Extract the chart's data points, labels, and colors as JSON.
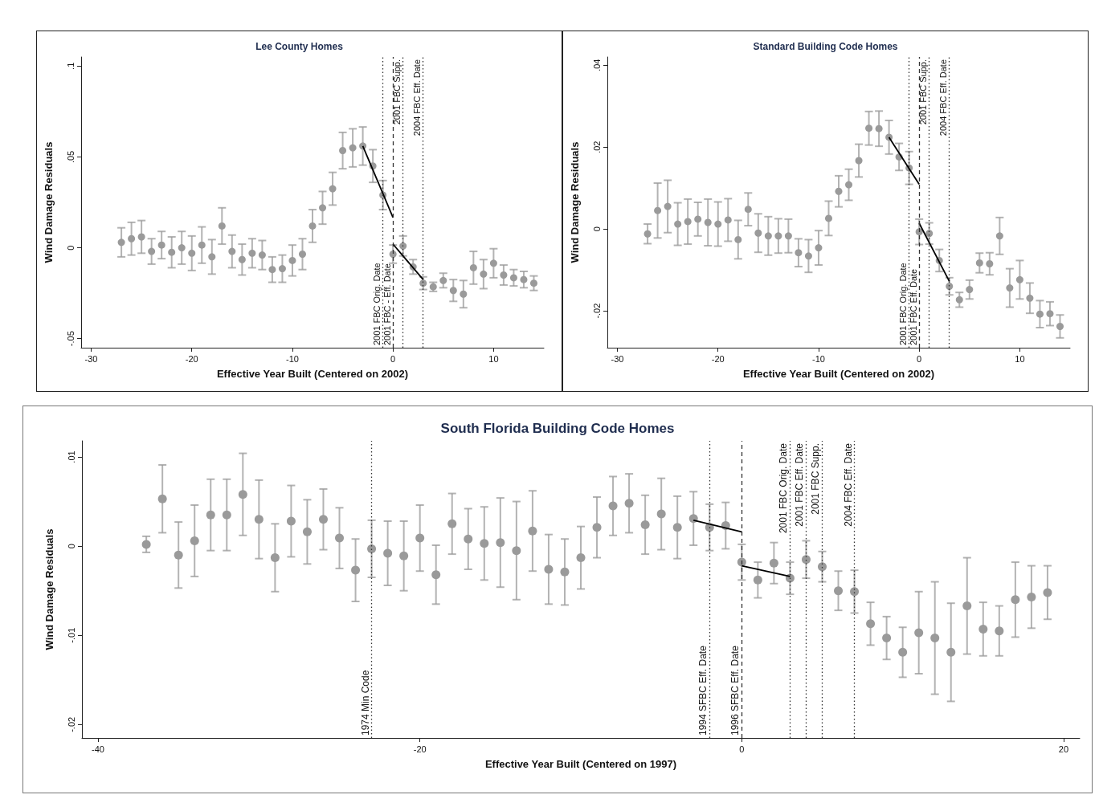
{
  "chart_data": [
    {
      "type": "scatter",
      "title": "Lee County Homes",
      "xlabel": "Effective Year Built (Centered on 2002)",
      "ylabel": "Wind Damage Residuals",
      "grid": false,
      "xlim": [
        -31,
        15
      ],
      "xticks": [
        -30,
        -20,
        -10,
        0,
        10
      ],
      "ylim": [
        -0.055,
        0.105
      ],
      "yticks": [
        {
          "value": -0.05,
          "label": "-.05"
        },
        {
          "value": 0,
          "label": "0"
        },
        {
          "value": 0.05,
          "label": ".05"
        },
        {
          "value": 0.1,
          "label": ".1"
        }
      ],
      "series": [
        {
          "type": "scatter",
          "marker": "circle",
          "color": "#9a9a9a",
          "x": [
            -27,
            -26,
            -25,
            -24,
            -23,
            -22,
            -21,
            -20,
            -19,
            -18,
            -17,
            -16,
            -15,
            -14,
            -13,
            -12,
            -11,
            -10,
            -9,
            -8,
            -7,
            -6,
            -5,
            -4,
            -3,
            -2,
            -1,
            0,
            1,
            2,
            3,
            4,
            5,
            6,
            7,
            8,
            9,
            10,
            11,
            12,
            13,
            14
          ],
          "values": [
            0.003,
            0.005,
            0.006,
            -0.002,
            0.0015,
            -0.0025,
            0,
            -0.003,
            0.0015,
            -0.005,
            0.012,
            -0.002,
            -0.0065,
            -0.003,
            -0.004,
            -0.012,
            -0.0115,
            -0.007,
            -0.0035,
            0.012,
            0.022,
            0.0325,
            0.0535,
            0.055,
            0.056,
            0.045,
            0.029,
            -0.0035,
            0.001,
            -0.0105,
            -0.0195,
            -0.0215,
            -0.018,
            -0.0235,
            -0.0255,
            -0.011,
            -0.0145,
            -0.0085,
            -0.015,
            -0.0165,
            -0.0175,
            -0.0195
          ],
          "errors": [
            0.008,
            0.009,
            0.009,
            0.007,
            0.0075,
            0.0085,
            0.009,
            0.0095,
            0.01,
            0.0095,
            0.01,
            0.009,
            0.0085,
            0.008,
            0.008,
            0.007,
            0.0075,
            0.0085,
            0.0085,
            0.009,
            0.009,
            0.009,
            0.01,
            0.0105,
            0.0105,
            0.009,
            0.008,
            0.005,
            0.0055,
            0.004,
            0.0035,
            0.0025,
            0.004,
            0.006,
            0.0075,
            0.009,
            0.008,
            0.008,
            0.0055,
            0.0045,
            0.0045,
            0.004
          ]
        },
        {
          "type": "line",
          "marker": "none",
          "color": "#000000",
          "x": [
            -3,
            0
          ],
          "values": [
            0.056,
            0.0167
          ]
        },
        {
          "type": "line",
          "marker": "none",
          "color": "#000000",
          "x": [
            0,
            3
          ],
          "values": [
            0.002,
            -0.0175
          ]
        }
      ],
      "ref_lines": [
        {
          "axis": "x",
          "value": -1,
          "label": "2001 FBC Orig. Date",
          "line_style": "dotted"
        },
        {
          "axis": "x",
          "value": 0,
          "label": "2001 FBC - Eff. Date",
          "line_style": "dashed"
        },
        {
          "axis": "x",
          "value": 1,
          "label": "2001 FBC Supp.",
          "line_style": "dotted"
        },
        {
          "axis": "x",
          "value": 3,
          "label": "2004 FBC Eff. Date",
          "line_style": "dotted"
        }
      ]
    },
    {
      "type": "scatter",
      "title": "Standard Building Code Homes",
      "xlabel": "Effective Year Built (Centered on 2002)",
      "ylabel": "Wind Damage Residuals",
      "grid": false,
      "xlim": [
        -31,
        15
      ],
      "xticks": [
        -30,
        -20,
        -10,
        0,
        10
      ],
      "ylim": [
        -0.029,
        0.042
      ],
      "yticks": [
        {
          "value": -0.02,
          "label": "-.02"
        },
        {
          "value": 0,
          "label": "0"
        },
        {
          "value": 0.02,
          "label": ".02"
        },
        {
          "value": 0.04,
          "label": ".04"
        }
      ],
      "series": [
        {
          "type": "scatter",
          "marker": "circle",
          "color": "#9a9a9a",
          "x": [
            -27,
            -26,
            -25,
            -24,
            -23,
            -22,
            -21,
            -20,
            -19,
            -18,
            -17,
            -16,
            -15,
            -14,
            -13,
            -12,
            -11,
            -10,
            -9,
            -8,
            -7,
            -6,
            -5,
            -4,
            -3,
            -2,
            -1,
            0,
            1,
            2,
            3,
            4,
            5,
            6,
            7,
            8,
            9,
            10,
            11,
            12,
            13,
            14
          ],
          "values": [
            -0.0012,
            0.0045,
            0.0055,
            0.0012,
            0.0018,
            0.0024,
            0.0016,
            0.0012,
            0.0022,
            -0.0026,
            0.0048,
            -0.001,
            -0.0017,
            -0.0017,
            -0.0017,
            -0.0058,
            -0.0066,
            -0.0046,
            0.0026,
            0.0092,
            0.0108,
            0.0167,
            0.0246,
            0.0245,
            0.0224,
            0.0176,
            0.0149,
            -0.0007,
            -0.0011,
            -0.0077,
            -0.014,
            -0.0173,
            -0.0148,
            -0.0083,
            -0.0085,
            -0.0017,
            -0.0144,
            -0.0124,
            -0.0169,
            -0.0208,
            -0.0207,
            -0.0238
          ],
          "errors": [
            0.0024,
            0.0067,
            0.0064,
            0.0052,
            0.0055,
            0.0041,
            0.0057,
            0.0054,
            0.0052,
            0.0047,
            0.004,
            0.0047,
            0.0047,
            0.0042,
            0.0041,
            0.0034,
            0.004,
            0.0042,
            0.0042,
            0.0038,
            0.0038,
            0.004,
            0.0041,
            0.0043,
            0.0041,
            0.0033,
            0.004,
            0.0031,
            0.0026,
            0.0027,
            0.0021,
            0.0018,
            0.0023,
            0.0024,
            0.0027,
            0.0045,
            0.0047,
            0.0047,
            0.0037,
            0.0033,
            0.0029,
            0.0028
          ]
        },
        {
          "type": "line",
          "marker": "none",
          "color": "#000000",
          "x": [
            -3,
            0
          ],
          "values": [
            0.0224,
            0.0109
          ]
        },
        {
          "type": "line",
          "marker": "none",
          "color": "#000000",
          "x": [
            0,
            3
          ],
          "values": [
            0.0014,
            -0.0128
          ]
        }
      ],
      "ref_lines": [
        {
          "axis": "x",
          "value": -1,
          "label": "2001 FBC Orig. Date",
          "line_style": "dotted"
        },
        {
          "axis": "x",
          "value": 0,
          "label": "2001 FBC Eff. Date",
          "line_style": "dashed"
        },
        {
          "axis": "x",
          "value": 1,
          "label": "2001 FBC Supp.",
          "line_style": "dotted"
        },
        {
          "axis": "x",
          "value": 3,
          "label": "2004 FBC Eff. Date",
          "line_style": "dotted"
        }
      ]
    },
    {
      "type": "scatter",
      "title": "South Florida Building Code Homes",
      "xlabel": "Effective Year Built (Centered on 1997)",
      "ylabel": "Wind Damage Residuals",
      "grid": false,
      "xlim": [
        -41,
        21
      ],
      "xticks": [
        -40,
        -20,
        0,
        20
      ],
      "ylim": [
        -0.0215,
        0.0118
      ],
      "yticks": [
        {
          "value": -0.02,
          "label": "-.02"
        },
        {
          "value": -0.01,
          "label": "-.01"
        },
        {
          "value": 0,
          "label": "0"
        },
        {
          "value": 0.01,
          "label": ".01"
        }
      ],
      "series": [
        {
          "type": "scatter",
          "marker": "circle",
          "color": "#9a9a9a",
          "x": [
            -37,
            -36,
            -35,
            -34,
            -33,
            -32,
            -31,
            -30,
            -29,
            -28,
            -27,
            -26,
            -25,
            -24,
            -23,
            -22,
            -21,
            -20,
            -19,
            -18,
            -17,
            -16,
            -15,
            -14,
            -13,
            -12,
            -11,
            -10,
            -9,
            -8,
            -7,
            -6,
            -5,
            -4,
            -3,
            -2,
            -1,
            0,
            1,
            2,
            3,
            4,
            5,
            6,
            7,
            8,
            9,
            10,
            11,
            12,
            13,
            14,
            15,
            16,
            17,
            18,
            19
          ],
          "values": [
            0.0002,
            0.0053,
            -0.001,
            0.0006,
            0.0035,
            0.0035,
            0.0058,
            0.003,
            -0.0013,
            0.0028,
            0.0016,
            0.003,
            0.0009,
            -0.0027,
            -0.0003,
            -0.0008,
            -0.0011,
            0.0009,
            -0.0032,
            0.0025,
            0.0008,
            0.0003,
            0.0004,
            -0.0005,
            0.0017,
            -0.0026,
            -0.0029,
            -0.0013,
            0.0021,
            0.0045,
            0.0048,
            0.0024,
            0.0036,
            0.0021,
            0.0031,
            0.0021,
            0.0023,
            -0.0018,
            -0.0038,
            -0.0019,
            -0.0036,
            -0.0015,
            -0.0023,
            -0.005,
            -0.0051,
            -0.0087,
            -0.0103,
            -0.0119,
            -0.0097,
            -0.0103,
            -0.0119,
            -0.0067,
            -0.0093,
            -0.0095,
            -0.006,
            -0.0057,
            -0.0052
          ],
          "errors": [
            0.0009,
            0.0038,
            0.0037,
            0.004,
            0.004,
            0.004,
            0.0046,
            0.0044,
            0.0038,
            0.004,
            0.0036,
            0.0034,
            0.0034,
            0.0035,
            0.0032,
            0.0036,
            0.0039,
            0.0037,
            0.0033,
            0.0034,
            0.0034,
            0.0041,
            0.005,
            0.0055,
            0.0045,
            0.0039,
            0.0037,
            0.0035,
            0.0034,
            0.0033,
            0.0033,
            0.0033,
            0.004,
            0.0035,
            0.003,
            0.0026,
            0.0026,
            0.002,
            0.002,
            0.0023,
            0.0018,
            0.0021,
            0.0017,
            0.0022,
            0.0024,
            0.0024,
            0.0024,
            0.0028,
            0.0046,
            0.0063,
            0.0055,
            0.0054,
            0.003,
            0.0028,
            0.0042,
            0.0035,
            0.003
          ]
        },
        {
          "type": "line",
          "marker": "none",
          "color": "#000000",
          "x": [
            -3,
            0
          ],
          "values": [
            0.0029,
            0.0016
          ]
        },
        {
          "type": "line",
          "marker": "none",
          "color": "#000000",
          "x": [
            0,
            3
          ],
          "values": [
            -0.0022,
            -0.0034
          ]
        }
      ],
      "ref_lines": [
        {
          "axis": "x",
          "value": -23,
          "label": "1974 Min Code",
          "line_style": "dotted"
        },
        {
          "axis": "x",
          "value": -2,
          "label": "1994 SFBC Eff. Date",
          "line_style": "dotted"
        },
        {
          "axis": "x",
          "value": 0,
          "label": "1996 SFBC Eff. Date",
          "line_style": "dashed"
        },
        {
          "axis": "x",
          "value": 3,
          "label": "2001 FBC Orig. Date",
          "line_style": "dotted"
        },
        {
          "axis": "x",
          "value": 4,
          "label": "2001 FBC Eff. Date",
          "line_style": "dotted"
        },
        {
          "axis": "x",
          "value": 5,
          "label": "2001 FBC Supp.",
          "line_style": "dotted"
        },
        {
          "axis": "x",
          "value": 7,
          "label": "2004 FBC Eff. Date",
          "line_style": "dotted"
        }
      ]
    }
  ]
}
